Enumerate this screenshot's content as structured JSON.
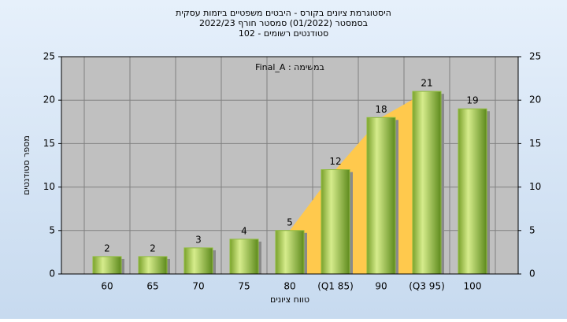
{
  "chart_data": {
    "type": "bar",
    "title": [
      "היסטוגרמת ציונים בקורס - היבטים משפטיים ביזמות עסקית",
      "בסמסטר (01/2022) סמסטר חורף 2022/23",
      "102 - סטודנטים רשומים"
    ],
    "annotation": "Final_A : במשימה",
    "x_label": "טווח ציונים",
    "y_label": "מספר סטודנטים",
    "categories": [
      "60",
      "65",
      "70",
      "75",
      "80",
      "(Q1 85)",
      "90",
      "(Q3 95)",
      "100"
    ],
    "values": [
      2,
      2,
      3,
      4,
      5,
      12,
      18,
      21,
      19
    ],
    "color": "#8fbc3c",
    "ylim": [
      0,
      25
    ],
    "yticks": [
      0,
      5,
      10,
      15,
      20,
      25
    ],
    "grid": true
  }
}
